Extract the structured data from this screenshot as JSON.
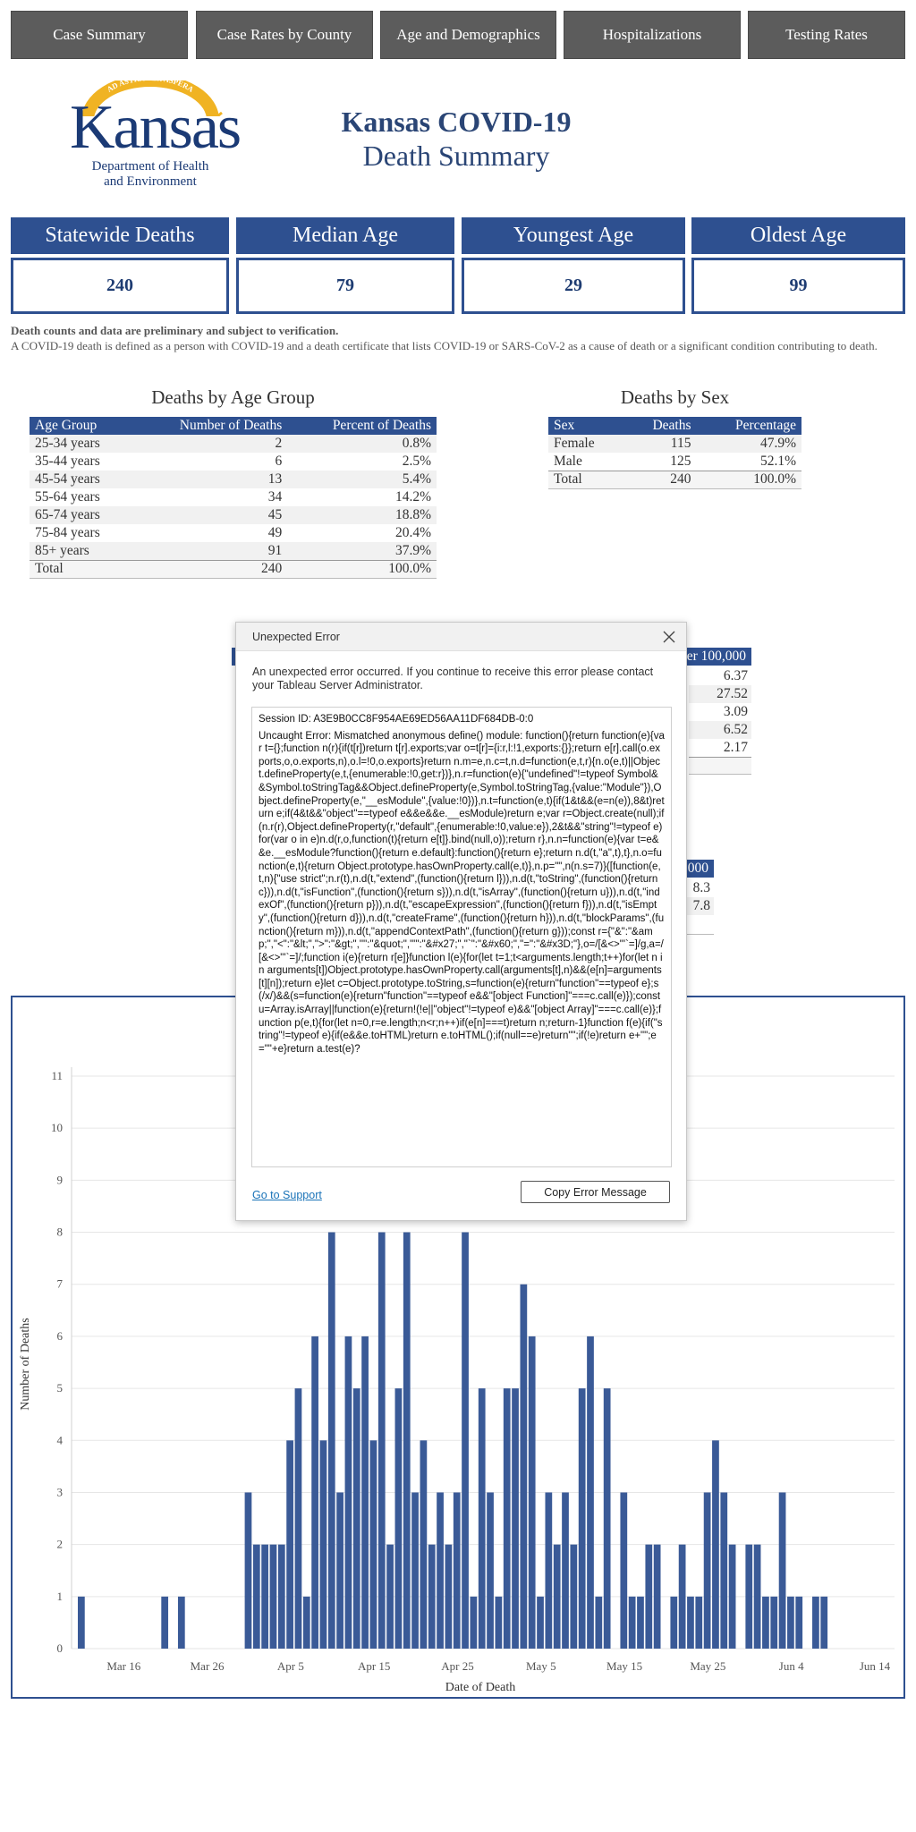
{
  "nav": {
    "tabs": [
      {
        "label": "Case Summary"
      },
      {
        "label": "Case Rates by County"
      },
      {
        "label": "Age and Demographics"
      },
      {
        "label": "Hospitalizations"
      },
      {
        "label": "Testing Rates"
      }
    ]
  },
  "logo": {
    "motto": "AD ASTRA PER ASPERA",
    "name": "Kansas",
    "dept_line1": "Department of Health",
    "dept_line2": "and Environment"
  },
  "header": {
    "title": "Kansas COVID-19",
    "subtitle": "Death Summary"
  },
  "stats": [
    {
      "label": "Statewide Deaths",
      "value": "240"
    },
    {
      "label": "Median Age",
      "value": "79"
    },
    {
      "label": "Youngest Age",
      "value": "29"
    },
    {
      "label": "Oldest Age",
      "value": "99"
    }
  ],
  "notes": {
    "bold": "Death counts and data are preliminary and subject to verification.",
    "text": "A COVID-19 death is defined as a person with COVID-19 and a death certificate that lists COVID-19 or SARS-CoV-2 as a cause of death or a significant condition contributing to death."
  },
  "age_table": {
    "title": "Deaths by Age Group",
    "headers": [
      "Age Group",
      "Number of Deaths",
      "Percent of Deaths"
    ],
    "rows": [
      [
        "25-34 years",
        "2",
        "0.8%"
      ],
      [
        "35-44 years",
        "6",
        "2.5%"
      ],
      [
        "45-54 years",
        "13",
        "5.4%"
      ],
      [
        "55-64 years",
        "34",
        "14.2%"
      ],
      [
        "65-74 years",
        "45",
        "18.8%"
      ],
      [
        "75-84 years",
        "49",
        "20.4%"
      ],
      [
        "85+ years",
        "91",
        "37.9%"
      ]
    ],
    "total": [
      "Total",
      "240",
      "100.0%"
    ]
  },
  "sex_table": {
    "title": "Deaths by Sex",
    "headers": [
      "Sex",
      "Deaths",
      "Percentage"
    ],
    "rows": [
      [
        "Female",
        "115",
        "47.9%"
      ],
      [
        "Male",
        "125",
        "52.1%"
      ]
    ],
    "total": [
      "Total",
      "240",
      "100.0%"
    ]
  },
  "race_table_partial": {
    "header_fragment": "er 100,000",
    "values": [
      "6.37",
      "27.52",
      "3.09",
      "6.52",
      "2.17"
    ]
  },
  "ethnicity_table_partial": {
    "header_fragment": "000",
    "values": [
      "8.3",
      "7.8"
    ]
  },
  "dialog": {
    "title": "Unexpected Error",
    "message": "An unexpected error occurred. If you continue to receive this error please contact your Tableau Server Administrator.",
    "session": "Session ID: A3E9B0CC8F954AE69ED56AA11DF684DB-0:0",
    "error": "Uncaught Error: Mismatched anonymous define() module: function(){return function(e){var t={};function n(r){if(t[r])return t[r].exports;var o=t[r]={i:r,l:!1,exports:{}};return e[r].call(o.exports,o,o.exports,n),o.l=!0,o.exports}return n.m=e,n.c=t,n.d=function(e,t,r){n.o(e,t)||Object.defineProperty(e,t,{enumerable:!0,get:r})},n.r=function(e){\"undefined\"!=typeof Symbol&&Symbol.toStringTag&&Object.defineProperty(e,Symbol.toStringTag,{value:\"Module\"}),Object.defineProperty(e,\"__esModule\",{value:!0})},n.t=function(e,t){if(1&t&&(e=n(e)),8&t)return e;if(4&t&&\"object\"==typeof e&&e&&e.__esModule)return e;var r=Object.create(null);if(n.r(r),Object.defineProperty(r,\"default\",{enumerable:!0,value:e}),2&t&&\"string\"!=typeof e)for(var o in e)n.d(r,o,function(t){return e[t]}.bind(null,o));return r},n.n=function(e){var t=e&&e.__esModule?function(){return e.default}:function(){return e};return n.d(t,\"a\",t),t},n.o=function(e,t){return Object.prototype.hasOwnProperty.call(e,t)},n.p=\"\",n(n.s=7)}([function(e,t,n){\"use strict\";n.r(t),n.d(t,\"extend\",(function(){return l})),n.d(t,\"toString\",(function(){return c})),n.d(t,\"isFunction\",(function(){return s})),n.d(t,\"isArray\",(function(){return u})),n.d(t,\"indexOf\",(function(){return p})),n.d(t,\"escapeExpression\",(function(){return f})),n.d(t,\"isEmpty\",(function(){return d})),n.d(t,\"createFrame\",(function(){return h})),n.d(t,\"blockParams\",(function(){return m})),n.d(t,\"appendContextPath\",(function(){return g}));const r={\"&\":\"&amp;\",\"<\":\"&lt;\",\">\":\"&gt;\",'\"':\"&quot;\",\"'\":\"&#x27;\",\"`\":\"&#x60;\",\"=\":\"&#x3D;\"},o=/[&<>\"'`=]/g,a=/[&<>\"'`=]/;function i(e){return r[e]}function l(e){for(let t=1;t<arguments.length;t++)for(let n in arguments[t])Object.prototype.hasOwnProperty.call(arguments[t],n)&&(e[n]=arguments[t][n]);return e}let c=Object.prototype.toString,s=function(e){return\"function\"==typeof e};s(/x/)&&(s=function(e){return\"function\"==typeof e&&\"[object Function]\"===c.call(e)});const u=Array.isArray||function(e){return!(!e||\"object\"!=typeof e)&&\"[object Array]\"===c.call(e)};function p(e,t){for(let n=0,r=e.length;n<r;n++)if(e[n]===t)return n;return-1}function f(e){if(\"string\"!=typeof e){if(e&&e.toHTML)return e.toHTML();if(null==e)return\"\";if(!e)return e+\"\";e=\"\"+e}return a.test(e)?",
    "link": "Go to Support",
    "button": "Copy Error Message"
  },
  "chart_data": {
    "type": "bar",
    "title": "",
    "xlabel": "Date of Death",
    "ylabel": "Number of Deaths",
    "ylim": [
      0,
      11
    ],
    "yticks": [
      0,
      1,
      2,
      3,
      4,
      5,
      6,
      7,
      8,
      9,
      10,
      11
    ],
    "xticks": [
      "Mar 16",
      "Mar 26",
      "Apr 5",
      "Apr 15",
      "Apr 25",
      "May 5",
      "May 15",
      "May 25",
      "Jun 4",
      "Jun 14"
    ],
    "x_start": "Mar 11",
    "color": "#3a5a97",
    "values": [
      1,
      0,
      0,
      0,
      0,
      0,
      0,
      0,
      0,
      0,
      1,
      0,
      1,
      0,
      0,
      0,
      0,
      0,
      0,
      0,
      3,
      2,
      2,
      2,
      2,
      4,
      5,
      1,
      6,
      4,
      8,
      3,
      6,
      5,
      6,
      4,
      8,
      2,
      5,
      8,
      3,
      4,
      2,
      3,
      2,
      3,
      8,
      1,
      5,
      3,
      1,
      5,
      5,
      7,
      6,
      1,
      3,
      2,
      3,
      2,
      5,
      6,
      1,
      5,
      0,
      3,
      1,
      1,
      2,
      2,
      0,
      1,
      2,
      1,
      1,
      3,
      4,
      3,
      2,
      0,
      2,
      2,
      1,
      1,
      3,
      1,
      1,
      0,
      1,
      1
    ]
  }
}
